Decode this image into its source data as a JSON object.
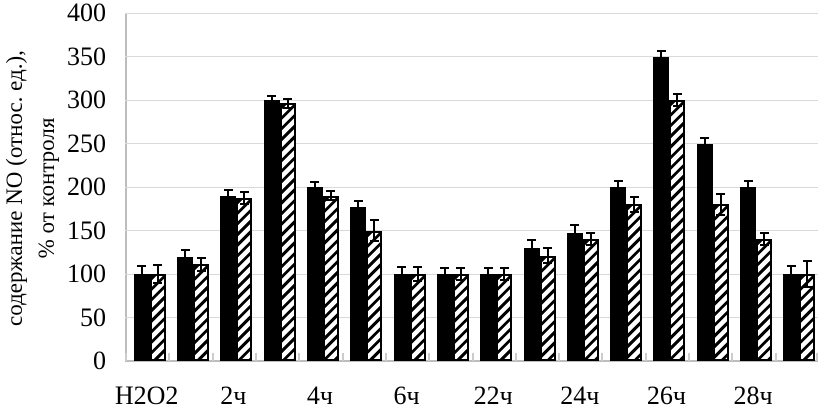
{
  "chart_data": {
    "type": "bar",
    "title": "",
    "ylabel_line1": "содержание NO (относ. ед.),",
    "ylabel_line2": "% от контроля",
    "xlabel": "",
    "ylim": [
      0,
      400
    ],
    "yticks": [
      0,
      50,
      100,
      150,
      200,
      250,
      300,
      350,
      400
    ],
    "grid": "horizontal light gray gridlines every 50, on",
    "legend_position": "none",
    "categories": [
      "H2O2",
      "",
      "2ч",
      "",
      "4ч",
      "",
      "6ч",
      "",
      "22ч",
      "",
      "24ч",
      "",
      "26ч",
      "",
      "28ч",
      ""
    ],
    "series": [
      {
        "name": "solid-black-bars",
        "fill": "solid black",
        "values": [
          100,
          120,
          190,
          300,
          200,
          177,
          100,
          100,
          100,
          130,
          147,
          200,
          350,
          250,
          200,
          100
        ],
        "errors": [
          10,
          9,
          8,
          6,
          7,
          8,
          9,
          8,
          8,
          10,
          10,
          8,
          7,
          8,
          8,
          10
        ]
      },
      {
        "name": "hatched-bars",
        "fill": "white with black diagonal hatching",
        "values": [
          100,
          111,
          187,
          296,
          190,
          150,
          100,
          100,
          100,
          121,
          140,
          180,
          300,
          180,
          140,
          100
        ],
        "errors": [
          12,
          9,
          8,
          6,
          6,
          13,
          9,
          8,
          8,
          10,
          8,
          10,
          8,
          13,
          8,
          16
        ]
      }
    ],
    "error_bars": "black whiskers with end caps on every bar",
    "colors": {
      "bar": "#000000",
      "gridline": "#d9d9d9",
      "axis": "#bdbdbd",
      "tick": "#cccccc",
      "text": "#000000",
      "background": "#ffffff"
    }
  }
}
